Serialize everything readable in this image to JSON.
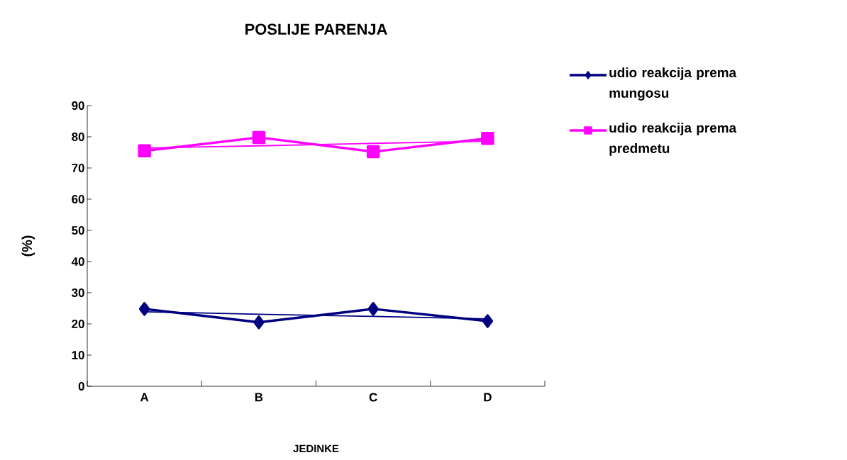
{
  "chart_data": {
    "type": "line",
    "title": "POSLIJE PARENJA",
    "xlabel": "JEDINKE",
    "ylabel": "(%)",
    "categories": [
      "A",
      "B",
      "C",
      "D"
    ],
    "series": [
      {
        "name": "udio reakcija prema mungosu",
        "color": "#000080",
        "values": [
          24.8,
          20.5,
          24.8,
          20.9
        ],
        "marker": "diamond"
      },
      {
        "name": "udio reakcija prema predmetu",
        "color": "#ff00ff",
        "values": [
          75.5,
          79.8,
          75.2,
          79.5
        ],
        "marker": "square"
      },
      {
        "color": "#000080",
        "values": [
          23.9,
          23.1,
          22.4,
          21.6
        ],
        "marker": "none"
      },
      {
        "color": "#ff00ff",
        "values": [
          76.4,
          77.1,
          77.9,
          78.6
        ],
        "marker": "none"
      }
    ],
    "ylim": [
      0,
      90
    ],
    "yticks": [
      0,
      10,
      20,
      30,
      40,
      50,
      60,
      70,
      80,
      90
    ],
    "grid": false,
    "legend": "top right",
    "line_style": "solid"
  }
}
